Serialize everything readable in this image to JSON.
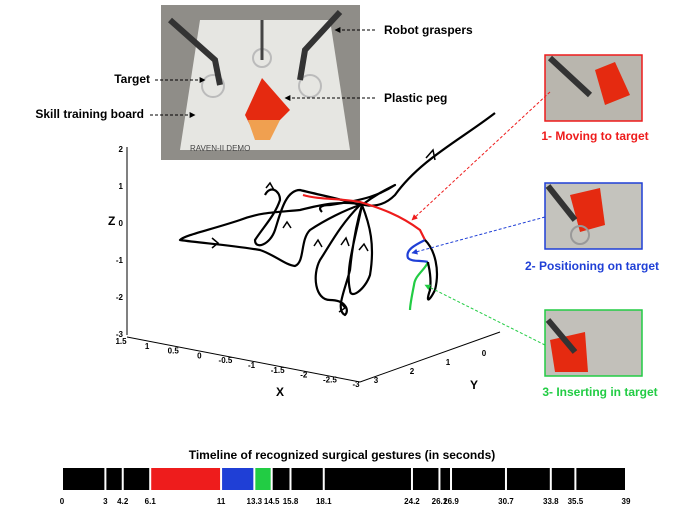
{
  "photo": {
    "caption": "RAVEN-II DEMO",
    "labels": [
      "Robot graspers",
      "Target",
      "Plastic peg",
      "Skill training board"
    ]
  },
  "axes": {
    "x_label": "X",
    "y_label": "Y",
    "z_label": "Z",
    "z_ticks": [
      2,
      1,
      0,
      -1,
      -2,
      -3
    ],
    "x_ticks": [
      1.5,
      1,
      0.5,
      0,
      -0.5,
      -1,
      -1.5,
      -2,
      -2.5,
      -3
    ],
    "y_ticks": [
      3,
      2,
      1,
      0
    ]
  },
  "gestures": [
    {
      "label": "1- Moving to target",
      "color": "#ee1c1c"
    },
    {
      "label": "2- Positioning on target",
      "color": "#1f3fd6"
    },
    {
      "label": "3- Inserting in target",
      "color": "#22cc44"
    }
  ],
  "timeline": {
    "title": "Timeline of recognized surgical gestures (in seconds)",
    "ticks": [
      0,
      3,
      4.2,
      6.1,
      11,
      13.3,
      14.5,
      15.8,
      18.1,
      24.2,
      26.1,
      26.9,
      30.7,
      33.8,
      35.5,
      39
    ],
    "segment_colors": [
      "#000000",
      "#000000",
      "#000000",
      "#ee1c1c",
      "#1f3fd6",
      "#22cc44",
      "#000000",
      "#000000",
      "#000000",
      "#000000",
      "#000000",
      "#000000",
      "#000000",
      "#000000",
      "#000000"
    ]
  }
}
